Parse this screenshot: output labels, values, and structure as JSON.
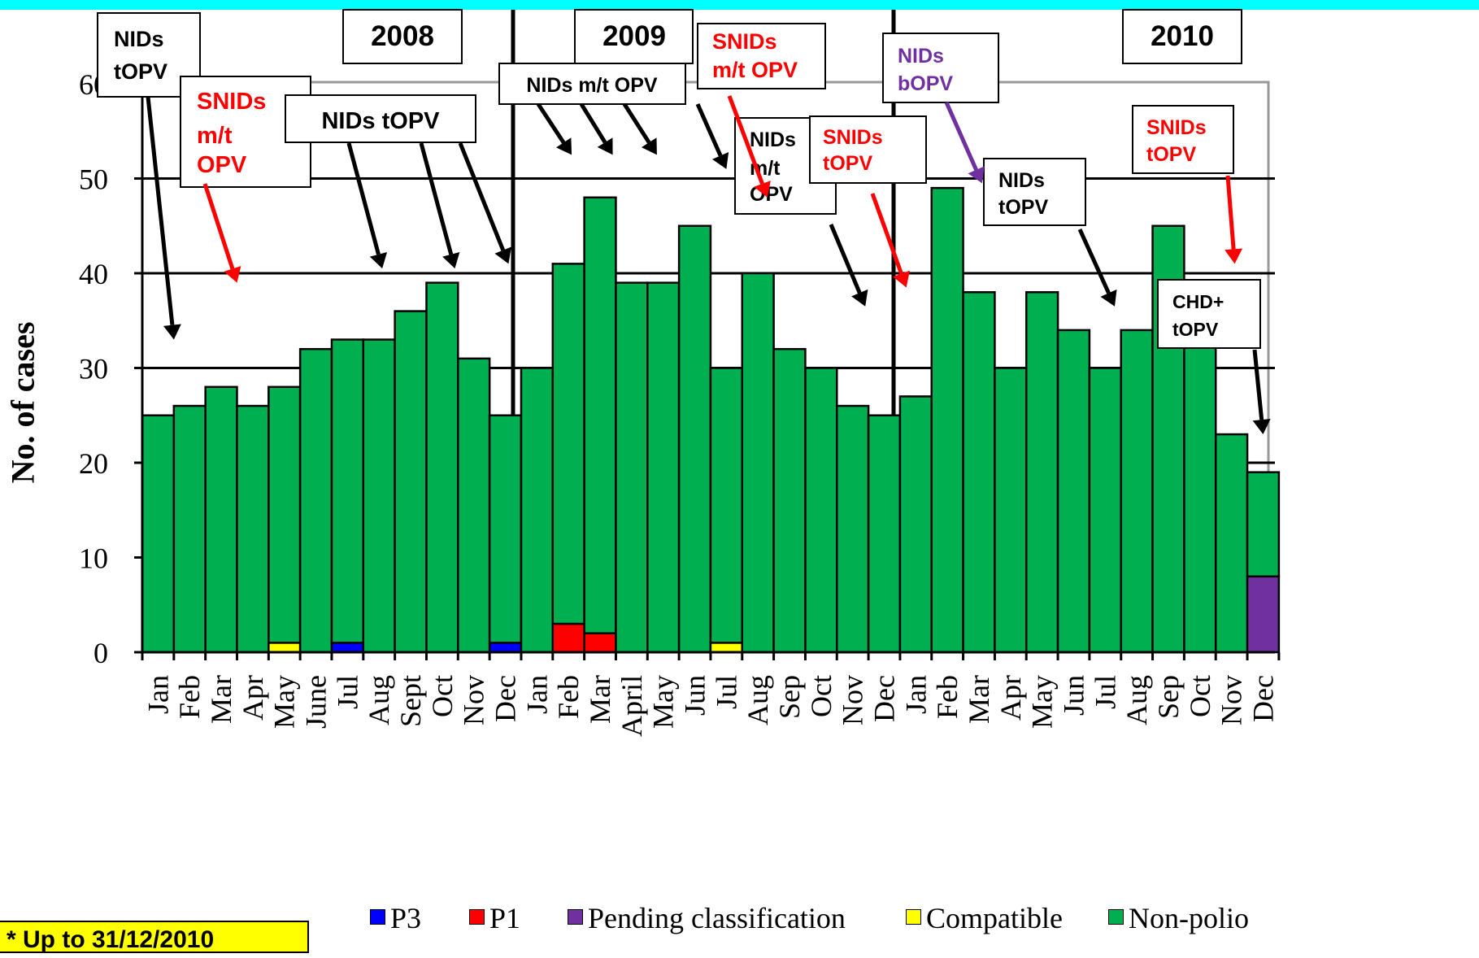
{
  "chart_data": {
    "type": "bar",
    "stacked": true,
    "ylabel": "No. of cases",
    "ylim": [
      0,
      60
    ],
    "yticks": [
      0,
      10,
      20,
      30,
      40,
      50,
      60
    ],
    "grid": true,
    "legend_position": "bottom",
    "year_labels": [
      "2008",
      "2009",
      "2010"
    ],
    "categories": [
      "Jan",
      "Feb",
      "Mar",
      "Apr",
      "May",
      "June",
      "Jul",
      "Aug",
      "Sept",
      "Oct",
      "Nov",
      "Dec",
      "Jan",
      "Feb",
      "Mar",
      "April",
      "May",
      "Jun",
      "Jul",
      "Aug",
      "Sep",
      "Oct",
      "Nov",
      "Dec",
      "Jan",
      "Feb",
      "Mar",
      "Apr",
      "May",
      "Jun",
      "Jul",
      "Aug",
      "Sep",
      "Oct",
      "Nov",
      "Dec"
    ],
    "series": [
      {
        "name": "P3",
        "color": "#0000ff",
        "values": [
          0,
          0,
          0,
          0,
          0,
          0,
          1,
          0,
          0,
          0,
          0,
          1,
          0,
          0,
          0,
          0,
          0,
          0,
          0,
          0,
          0,
          0,
          0,
          0,
          0,
          0,
          0,
          0,
          0,
          0,
          0,
          0,
          0,
          0,
          0,
          0
        ]
      },
      {
        "name": "P1",
        "color": "#ff0000",
        "values": [
          0,
          0,
          0,
          0,
          0,
          0,
          0,
          0,
          0,
          0,
          0,
          0,
          0,
          3,
          2,
          0,
          0,
          0,
          0,
          0,
          0,
          0,
          0,
          0,
          0,
          0,
          0,
          0,
          0,
          0,
          0,
          0,
          0,
          0,
          0,
          0
        ]
      },
      {
        "name": "Pending classification",
        "color": "#7030a0",
        "values": [
          0,
          0,
          0,
          0,
          0,
          0,
          0,
          0,
          0,
          0,
          0,
          0,
          0,
          0,
          0,
          0,
          0,
          0,
          0,
          0,
          0,
          0,
          0,
          0,
          0,
          0,
          0,
          0,
          0,
          0,
          0,
          0,
          0,
          0,
          0,
          8
        ]
      },
      {
        "name": "Compatible",
        "color": "#ffff00",
        "values": [
          0,
          0,
          0,
          0,
          1,
          0,
          0,
          0,
          0,
          0,
          0,
          0,
          0,
          0,
          0,
          0,
          0,
          0,
          1,
          0,
          0,
          0,
          0,
          0,
          0,
          0,
          0,
          0,
          0,
          0,
          0,
          0,
          0,
          0,
          0,
          0
        ]
      },
      {
        "name": "Non-polio",
        "color": "#00b050",
        "values": [
          25,
          26,
          28,
          26,
          27,
          32,
          32,
          33,
          36,
          39,
          31,
          24,
          30,
          38,
          46,
          39,
          39,
          45,
          29,
          40,
          32,
          30,
          26,
          25,
          27,
          49,
          38,
          30,
          38,
          34,
          30,
          34,
          45,
          35,
          23,
          11
        ]
      }
    ],
    "annotations": [
      {
        "text": [
          "NIDs",
          "tOPV"
        ],
        "color": "#000000",
        "arrows": [
          {
            "month": 1,
            "value": 33
          }
        ]
      },
      {
        "text": [
          "SNIDs",
          "m/t",
          "OPV"
        ],
        "color": "#ff0000",
        "arrows": [
          {
            "month": 3,
            "value": 39
          }
        ]
      },
      {
        "text": [
          "NIDs tOPV"
        ],
        "color": "#000000",
        "arrows": [
          {
            "month": 7.6,
            "value": 40.5
          },
          {
            "month": 9.9,
            "value": 40.5
          },
          {
            "month": 11.6,
            "value": 41
          }
        ]
      },
      {
        "text": [
          "2008"
        ],
        "color": "#000000",
        "arrows": []
      },
      {
        "text": [
          "2009"
        ],
        "color": "#000000",
        "arrows": []
      },
      {
        "text": [
          "NIDs m/t OPV"
        ],
        "color": "#000000",
        "arrows": [
          {
            "month": 13.6,
            "value": 52.5
          },
          {
            "month": 14.9,
            "value": 52.5
          },
          {
            "month": 16.3,
            "value": 52.5
          },
          {
            "month": 18.5,
            "value": 51
          }
        ]
      },
      {
        "text": [
          "SNIDs",
          "m/t OPV"
        ],
        "color": "#ff0000",
        "arrows": [
          {
            "month": 19.8,
            "value": 48
          }
        ]
      },
      {
        "text": [
          "NIDs",
          "m/t",
          "OPV"
        ],
        "color": "#000000",
        "arrows": [
          {
            "month": 22.9,
            "value": 36.5
          }
        ]
      },
      {
        "text": [
          "SNIDs",
          "tOPV"
        ],
        "color": "#ff0000",
        "arrows": [
          {
            "month": 24.2,
            "value": 38.5
          }
        ]
      },
      {
        "text": [
          "NIDs",
          "bOPV"
        ],
        "color": "#7030a0",
        "arrows": [
          {
            "month": 26.6,
            "value": 49.5
          }
        ]
      },
      {
        "text": [
          "NIDs",
          "tOPV"
        ],
        "color": "#000000",
        "arrows": [
          {
            "month": 30.8,
            "value": 36.5
          }
        ]
      },
      {
        "text": [
          "2010"
        ],
        "color": "#000000",
        "arrows": []
      },
      {
        "text": [
          "SNIDs",
          "tOPV"
        ],
        "color": "#ff0000",
        "arrows": [
          {
            "month": 34.6,
            "value": 41
          }
        ]
      },
      {
        "text": [
          "CHD+",
          "tOPV"
        ],
        "color": "#000000",
        "arrows": [
          {
            "month": 35.5,
            "value": 23
          }
        ]
      }
    ]
  },
  "note": "* Up to 31/12/2010"
}
